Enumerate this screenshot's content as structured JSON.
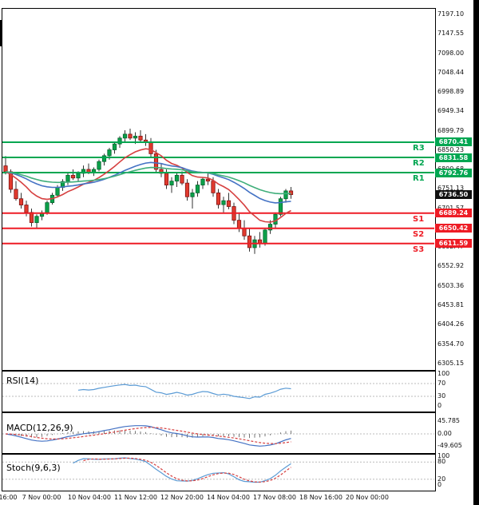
{
  "axis": {
    "price_ticks": [
      "7197.10",
      "7147.55",
      "7098.00",
      "7048.44",
      "6998.89",
      "6949.34",
      "6899.79",
      "6850.23",
      "6800.68",
      "6751.13",
      "6701.57",
      "6652.02",
      "6602.47",
      "6552.92",
      "6503.36",
      "6453.81",
      "6404.26",
      "6354.70",
      "6305.15"
    ],
    "time_labels": [
      "16:00",
      "7 Nov 00:00",
      "10 Nov 04:00",
      "11 Nov 12:00",
      "12 Nov 20:00",
      "14 Nov 04:00",
      "17 Nov 08:00",
      "18 Nov 16:00",
      "20 Nov 00:00"
    ],
    "rsi_scale": [
      "100",
      "70",
      "30",
      "0"
    ],
    "macd_scale": [
      "45.785",
      "0.00",
      "-49.605"
    ],
    "stoch_scale": [
      "100",
      "80",
      "20",
      "0"
    ]
  },
  "levels": {
    "resistance": [
      {
        "name": "R3",
        "price": 6870.41,
        "label": "6870.41"
      },
      {
        "name": "R2",
        "price": 6831.58,
        "label": "6831.58"
      },
      {
        "name": "R1",
        "price": 6792.76,
        "label": "6792.76"
      }
    ],
    "support": [
      {
        "name": "S1",
        "price": 6689.24,
        "label": "6689.24"
      },
      {
        "name": "S2",
        "price": 6650.42,
        "label": "6650.42"
      },
      {
        "name": "S3",
        "price": 6611.59,
        "label": "6611.59"
      }
    ],
    "last_price": {
      "label": "6736.50",
      "price": 6736.5
    }
  },
  "indicators": {
    "rsi": {
      "label": "RSI(14)",
      "period": 14
    },
    "macd": {
      "label": "MACD(12,26,9)",
      "fast": 12,
      "slow": 26,
      "signal": 9
    },
    "stoch": {
      "label": "Stoch(9,6,3)",
      "k": 9,
      "slow": 6,
      "d": 3
    }
  },
  "colors": {
    "bull": "#0ba14a",
    "bull_edge": "#05662e",
    "bear": "#e23a2e",
    "bear_edge": "#7d1616",
    "wick": "#333333",
    "resistance": "#00a651",
    "support": "#ee1c25",
    "last_badge": "#111111",
    "ma_fast": "#d64040",
    "ma_mid": "#4472c4",
    "ma_slow": "#3fae7a",
    "rsi_line": "#5b9bd5",
    "macd_line": "#4472c4",
    "macd_signal": "#d64040",
    "macd_hist": "#777777",
    "stoch_k": "#5b9bd5",
    "stoch_d": "#d64040",
    "grid_dotted": "#bbbbbb"
  },
  "chart_data": {
    "type": "candlestick",
    "series_name": "price",
    "timeframe_hint": "4h",
    "x_start_label": "6 Nov 16:00",
    "x_end_label": "20 Nov 00:00",
    "ylim": [
      6290,
      7215
    ],
    "candles": [
      [
        6810,
        6835,
        6788,
        6795
      ],
      [
        6795,
        6801,
        6741,
        6750
      ],
      [
        6750,
        6771,
        6721,
        6726
      ],
      [
        6726,
        6741,
        6701,
        6710
      ],
      [
        6710,
        6721,
        6681,
        6691
      ],
      [
        6691,
        6701,
        6655,
        6665
      ],
      [
        6665,
        6686,
        6650,
        6681
      ],
      [
        6681,
        6696,
        6671,
        6690
      ],
      [
        6690,
        6721,
        6685,
        6716
      ],
      [
        6716,
        6741,
        6711,
        6735
      ],
      [
        6735,
        6761,
        6729,
        6755
      ],
      [
        6755,
        6776,
        6746,
        6770
      ],
      [
        6770,
        6791,
        6761,
        6786
      ],
      [
        6786,
        6801,
        6774,
        6779
      ],
      [
        6779,
        6796,
        6770,
        6791
      ],
      [
        6791,
        6811,
        6781,
        6801
      ],
      [
        6801,
        6816,
        6789,
        6794
      ],
      [
        6794,
        6806,
        6784,
        6801
      ],
      [
        6801,
        6826,
        6796,
        6821
      ],
      [
        6821,
        6841,
        6811,
        6836
      ],
      [
        6836,
        6856,
        6826,
        6851
      ],
      [
        6851,
        6871,
        6841,
        6866
      ],
      [
        6866,
        6886,
        6856,
        6881
      ],
      [
        6881,
        6901,
        6871,
        6891
      ],
      [
        6891,
        6905,
        6876,
        6881
      ],
      [
        6881,
        6896,
        6866,
        6886
      ],
      [
        6886,
        6901,
        6871,
        6876
      ],
      [
        6876,
        6891,
        6861,
        6871
      ],
      [
        6871,
        6881,
        6831,
        6841
      ],
      [
        6841,
        6851,
        6791,
        6801
      ],
      [
        6801,
        6816,
        6781,
        6791
      ],
      [
        6791,
        6801,
        6751,
        6761
      ],
      [
        6761,
        6781,
        6741,
        6771
      ],
      [
        6771,
        6791,
        6756,
        6786
      ],
      [
        6786,
        6796,
        6761,
        6766
      ],
      [
        6766,
        6776,
        6721,
        6731
      ],
      [
        6731,
        6751,
        6701,
        6741
      ],
      [
        6741,
        6771,
        6731,
        6761
      ],
      [
        6761,
        6781,
        6751,
        6776
      ],
      [
        6776,
        6791,
        6761,
        6771
      ],
      [
        6771,
        6781,
        6731,
        6741
      ],
      [
        6741,
        6751,
        6701,
        6711
      ],
      [
        6711,
        6731,
        6691,
        6721
      ],
      [
        6721,
        6741,
        6699,
        6706
      ],
      [
        6706,
        6716,
        6661,
        6671
      ],
      [
        6671,
        6691,
        6641,
        6651
      ],
      [
        6651,
        6671,
        6621,
        6631
      ],
      [
        6631,
        6651,
        6591,
        6601
      ],
      [
        6601,
        6631,
        6585,
        6621
      ],
      [
        6621,
        6641,
        6601,
        6611
      ],
      [
        6611,
        6651,
        6606,
        6646
      ],
      [
        6646,
        6671,
        6636,
        6661
      ],
      [
        6661,
        6691,
        6651,
        6686
      ],
      [
        6686,
        6731,
        6681,
        6726
      ],
      [
        6726,
        6751,
        6716,
        6746
      ],
      [
        6746,
        6756,
        6726,
        6736.5
      ]
    ],
    "overlays": [
      {
        "name": "ema-fast",
        "type": "ema",
        "window": 12,
        "color_key": "ma_fast"
      },
      {
        "name": "ema-mid",
        "type": "ema",
        "window": 30,
        "color_key": "ma_mid"
      },
      {
        "name": "ema-slow",
        "type": "ema",
        "window": 50,
        "color_key": "ma_slow"
      }
    ]
  }
}
